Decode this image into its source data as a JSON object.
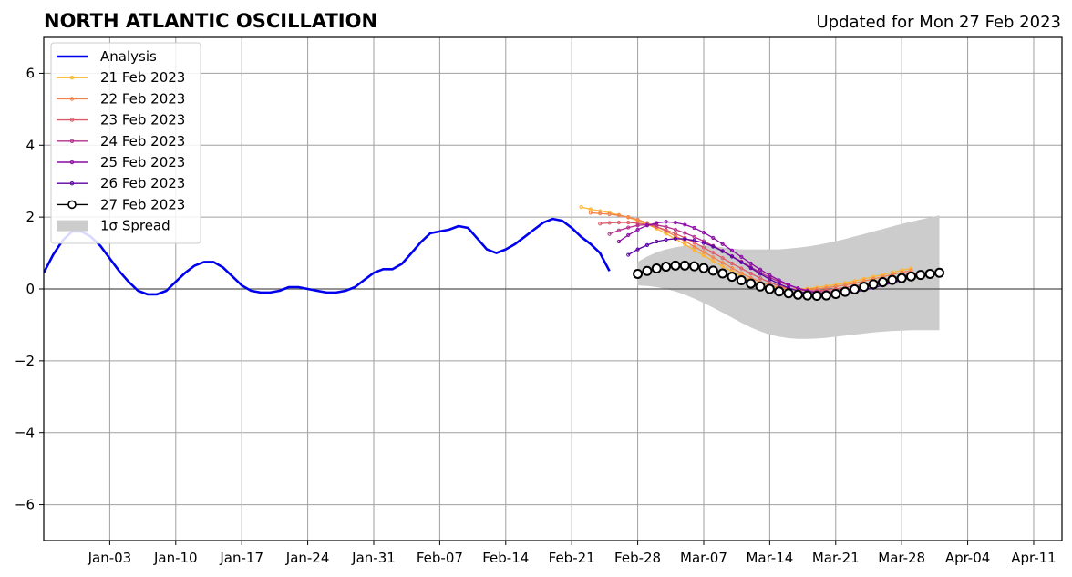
{
  "chart_data": {
    "type": "line",
    "title": "NORTH ATLANTIC OSCILLATION",
    "subtitle": "Updated for Mon 27 Feb 2023",
    "xlabel": "",
    "ylabel": "",
    "xlim": [
      "2022-12-27",
      "2023-04-14"
    ],
    "ylim": [
      -7,
      7
    ],
    "x_ticks": [
      "Jan-03",
      "Jan-10",
      "Jan-17",
      "Jan-24",
      "Jan-31",
      "Feb-07",
      "Feb-14",
      "Feb-21",
      "Feb-28",
      "Mar-07",
      "Mar-14",
      "Mar-21",
      "Mar-28",
      "Apr-04",
      "Apr-11"
    ],
    "x_tick_dates": [
      "2023-01-03",
      "2023-01-10",
      "2023-01-17",
      "2023-01-24",
      "2023-01-31",
      "2023-02-07",
      "2023-02-14",
      "2023-02-21",
      "2023-02-28",
      "2023-03-07",
      "2023-03-14",
      "2023-03-21",
      "2023-03-28",
      "2023-04-04",
      "2023-04-11"
    ],
    "y_ticks": [
      -6,
      -4,
      -2,
      0,
      2,
      4,
      6
    ],
    "y_tick_labels": [
      "−6",
      "−4",
      "−2",
      "0",
      "2",
      "4",
      "6"
    ],
    "grid": true,
    "legend_position": "top-left",
    "zero_line": 0,
    "analysis": {
      "name": "Analysis",
      "color": "#0000ee",
      "start": "2022-12-27",
      "values": [
        0.45,
        0.95,
        1.35,
        1.6,
        1.6,
        1.45,
        1.2,
        0.85,
        0.5,
        0.2,
        -0.05,
        -0.15,
        -0.15,
        -0.05,
        0.2,
        0.45,
        0.65,
        0.75,
        0.75,
        0.6,
        0.35,
        0.1,
        -0.05,
        -0.1,
        -0.1,
        -0.05,
        0.05,
        0.05,
        0.0,
        -0.05,
        -0.1,
        -0.1,
        -0.05,
        0.05,
        0.25,
        0.45,
        0.55,
        0.55,
        0.7,
        1.0,
        1.3,
        1.55,
        1.6,
        1.65,
        1.75,
        1.7,
        1.4,
        1.1,
        1.0,
        1.1,
        1.25,
        1.45,
        1.65,
        1.85,
        1.95,
        1.9,
        1.7,
        1.45,
        1.25,
        1.0,
        0.5
      ]
    },
    "forecasts": [
      {
        "name": "21 Feb 2023",
        "color": "#fdb42f",
        "start": "2023-02-22",
        "values": [
          2.28,
          2.22,
          2.17,
          2.12,
          2.06,
          1.99,
          1.9,
          1.8,
          1.68,
          1.54,
          1.39,
          1.24,
          1.08,
          0.93,
          0.78,
          0.63,
          0.49,
          0.36,
          0.24,
          0.14,
          0.07,
          0.03,
          0.0,
          0.0,
          0.01,
          0.04,
          0.08,
          0.12,
          0.17,
          0.22,
          0.28,
          0.34,
          0.4,
          0.46,
          0.52,
          0.57
        ]
      },
      {
        "name": "22 Feb 2023",
        "color": "#f3814c",
        "start": "2023-02-23",
        "values": [
          2.12,
          2.1,
          2.08,
          2.05,
          2.0,
          1.93,
          1.84,
          1.73,
          1.61,
          1.47,
          1.33,
          1.18,
          1.03,
          0.88,
          0.73,
          0.58,
          0.44,
          0.31,
          0.2,
          0.11,
          0.04,
          0.0,
          -0.02,
          -0.02,
          0.0,
          0.03,
          0.07,
          0.11,
          0.16,
          0.22,
          0.28,
          0.34,
          0.4,
          0.46,
          0.51
        ]
      },
      {
        "name": "23 Feb 2023",
        "color": "#db5c68",
        "start": "2023-02-24",
        "values": [
          1.82,
          1.84,
          1.85,
          1.85,
          1.83,
          1.79,
          1.73,
          1.64,
          1.54,
          1.42,
          1.29,
          1.15,
          1.01,
          0.86,
          0.71,
          0.57,
          0.43,
          0.3,
          0.18,
          0.09,
          0.02,
          -0.03,
          -0.05,
          -0.05,
          -0.03,
          0.0,
          0.04,
          0.08,
          0.13,
          0.19,
          0.25,
          0.31,
          0.37,
          0.43
        ]
      },
      {
        "name": "24 Feb 2023",
        "color": "#b52f8c",
        "start": "2023-02-25",
        "values": [
          1.53,
          1.63,
          1.71,
          1.77,
          1.79,
          1.78,
          1.73,
          1.65,
          1.56,
          1.45,
          1.33,
          1.2,
          1.06,
          0.91,
          0.76,
          0.61,
          0.46,
          0.32,
          0.2,
          0.1,
          0.02,
          -0.04,
          -0.07,
          -0.08,
          -0.07,
          -0.04,
          0.0,
          0.05,
          0.1,
          0.16,
          0.22,
          0.29,
          0.36
        ]
      },
      {
        "name": "25 Feb 2023",
        "color": "#8b0aa5",
        "start": "2023-02-26",
        "values": [
          1.32,
          1.5,
          1.65,
          1.77,
          1.84,
          1.87,
          1.85,
          1.79,
          1.7,
          1.57,
          1.42,
          1.25,
          1.07,
          0.89,
          0.71,
          0.54,
          0.38,
          0.24,
          0.12,
          0.02,
          -0.06,
          -0.11,
          -0.13,
          -0.13,
          -0.11,
          -0.07,
          -0.02,
          0.04,
          0.1,
          0.17,
          0.24,
          0.31
        ]
      },
      {
        "name": "26 Feb 2023",
        "color": "#5b02a3",
        "start": "2023-02-27",
        "values": [
          0.95,
          1.1,
          1.22,
          1.32,
          1.37,
          1.4,
          1.39,
          1.35,
          1.28,
          1.18,
          1.05,
          0.9,
          0.74,
          0.58,
          0.42,
          0.27,
          0.14,
          0.03,
          -0.06,
          -0.12,
          -0.15,
          -0.16,
          -0.15,
          -0.12,
          -0.08,
          -0.03,
          0.03,
          0.1,
          0.17,
          0.25,
          0.33
        ]
      },
      {
        "name": "27 Feb 2023",
        "color": "#000000",
        "start": "2023-02-28",
        "values": [
          0.42,
          0.5,
          0.57,
          0.62,
          0.65,
          0.65,
          0.63,
          0.58,
          0.51,
          0.43,
          0.34,
          0.24,
          0.15,
          0.07,
          0.0,
          -0.07,
          -0.12,
          -0.16,
          -0.18,
          -0.19,
          -0.18,
          -0.14,
          -0.08,
          -0.01,
          0.06,
          0.13,
          0.19,
          0.25,
          0.3,
          0.35,
          0.39,
          0.42,
          0.45
        ]
      }
    ],
    "spread": {
      "name": "1σ Spread",
      "color": "#cccccc",
      "start": "2023-02-28",
      "upper": [
        0.75,
        0.9,
        1.02,
        1.1,
        1.16,
        1.2,
        1.22,
        1.22,
        1.2,
        1.16,
        1.12,
        1.1,
        1.1,
        1.1,
        1.1,
        1.1,
        1.12,
        1.15,
        1.18,
        1.22,
        1.27,
        1.33,
        1.39,
        1.46,
        1.53,
        1.6,
        1.67,
        1.74,
        1.81,
        1.87,
        1.93,
        1.99,
        2.05
      ],
      "lower": [
        0.1,
        0.08,
        0.05,
        0.0,
        -0.07,
        -0.16,
        -0.27,
        -0.39,
        -0.52,
        -0.66,
        -0.8,
        -0.94,
        -1.07,
        -1.18,
        -1.27,
        -1.33,
        -1.37,
        -1.39,
        -1.39,
        -1.38,
        -1.36,
        -1.33,
        -1.3,
        -1.27,
        -1.24,
        -1.21,
        -1.19,
        -1.17,
        -1.16,
        -1.15,
        -1.15,
        -1.15,
        -1.15
      ]
    }
  }
}
